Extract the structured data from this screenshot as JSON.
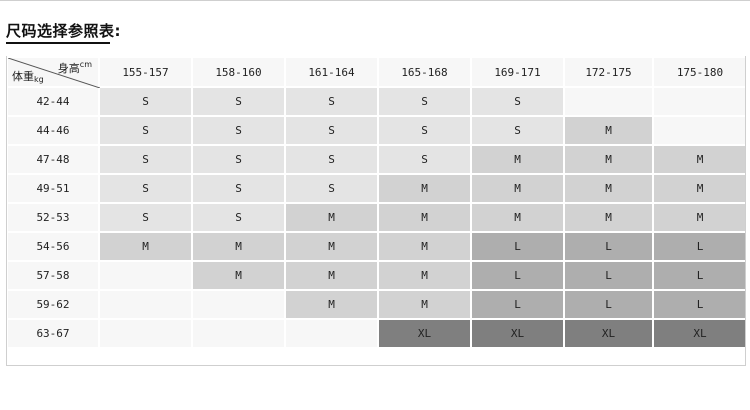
{
  "title": "尺码选择参照表:",
  "corner": {
    "height_label": "身高",
    "height_unit": "cm",
    "weight_label": "体重",
    "weight_unit": "kg"
  },
  "heights": [
    "155-157",
    "158-160",
    "161-164",
    "165-168",
    "169-171",
    "172-175",
    "175-180"
  ],
  "rows": [
    {
      "weight": "42-44",
      "sizes": [
        "S",
        "S",
        "S",
        "S",
        "S",
        "",
        ""
      ]
    },
    {
      "weight": "44-46",
      "sizes": [
        "S",
        "S",
        "S",
        "S",
        "S",
        "M",
        ""
      ]
    },
    {
      "weight": "47-48",
      "sizes": [
        "S",
        "S",
        "S",
        "S",
        "M",
        "M",
        "M"
      ]
    },
    {
      "weight": "49-51",
      "sizes": [
        "S",
        "S",
        "S",
        "M",
        "M",
        "M",
        "M"
      ]
    },
    {
      "weight": "52-53",
      "sizes": [
        "S",
        "S",
        "M",
        "M",
        "M",
        "M",
        "M"
      ]
    },
    {
      "weight": "54-56",
      "sizes": [
        "M",
        "M",
        "M",
        "M",
        "L",
        "L",
        "L"
      ]
    },
    {
      "weight": "57-58",
      "sizes": [
        "",
        "M",
        "M",
        "M",
        "L",
        "L",
        "L"
      ]
    },
    {
      "weight": "59-62",
      "sizes": [
        "",
        "",
        "M",
        "M",
        "L",
        "L",
        "L"
      ]
    },
    {
      "weight": "63-67",
      "sizes": [
        "",
        "",
        "",
        "XL",
        "XL",
        "XL",
        "XL"
      ]
    }
  ],
  "colors": {
    "S": "#e4e4e4",
    "M": "#d2d2d2",
    "L": "#aeaeae",
    "XL": "#7f7f7f",
    "empty": "#f7f7f7"
  }
}
